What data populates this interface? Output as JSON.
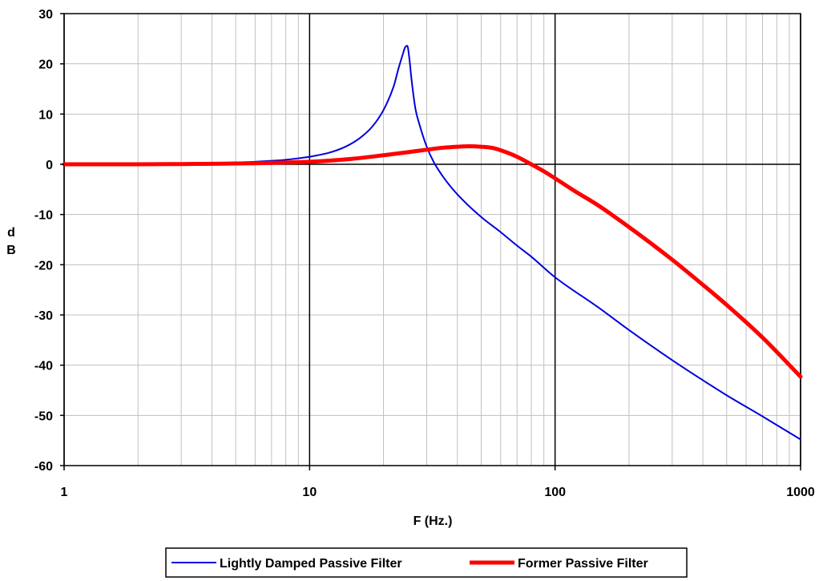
{
  "chart_data": {
    "type": "line",
    "title": "",
    "xlabel": "F  (Hz.)",
    "ylabel": "dB",
    "x_scale": "log",
    "xlim": [
      1,
      1000
    ],
    "ylim": [
      -60,
      30
    ],
    "x_ticks": [
      1,
      10,
      100,
      1000
    ],
    "x_tick_labels": [
      "1",
      "10",
      "100",
      "1000"
    ],
    "y_ticks": [
      30,
      20,
      10,
      0,
      -10,
      -20,
      -30,
      -40,
      -50,
      -60
    ],
    "y_tick_labels": [
      "30",
      "20",
      "10",
      "0",
      "-10",
      "-20",
      "-30",
      "-40",
      "-50",
      "-60"
    ],
    "grid": true,
    "legend_position": "bottom",
    "series": [
      {
        "name": "Lightly Damped Passive Filter",
        "color": "#0000dd",
        "x": [
          1,
          2,
          3,
          4,
          5,
          6,
          7,
          8,
          10,
          12,
          14,
          16,
          18,
          20,
          22,
          23,
          24,
          24.5,
          25,
          25.5,
          26,
          27,
          28,
          30,
          32,
          35,
          40,
          50,
          60,
          70,
          80,
          100,
          150,
          200,
          300,
          400,
          500,
          700,
          1000
        ],
        "y": [
          0,
          0.05,
          0.1,
          0.2,
          0.35,
          0.5,
          0.7,
          0.9,
          1.5,
          2.3,
          3.5,
          5.2,
          7.5,
          10.8,
          15.5,
          19,
          22,
          23.3,
          23.6,
          21,
          17,
          11,
          8,
          3.5,
          0.5,
          -2.5,
          -6,
          -10.5,
          -13.5,
          -16.2,
          -18.4,
          -22.5,
          -28.5,
          -33,
          -39,
          -43,
          -46,
          -50.2,
          -54.8
        ]
      },
      {
        "name": "Former Passive Filter",
        "color": "#ff0000",
        "x": [
          1,
          2,
          3,
          4,
          5,
          6,
          8,
          10,
          15,
          20,
          25,
          30,
          35,
          40,
          45,
          50,
          55,
          60,
          70,
          80,
          90,
          100,
          120,
          150,
          200,
          300,
          400,
          500,
          700,
          1000
        ],
        "y": [
          0,
          0,
          0.05,
          0.1,
          0.15,
          0.2,
          0.35,
          0.5,
          1.1,
          1.8,
          2.4,
          2.9,
          3.3,
          3.5,
          3.6,
          3.5,
          3.3,
          2.8,
          1.5,
          0,
          -1.4,
          -2.8,
          -5.3,
          -8.2,
          -12.5,
          -19,
          -24,
          -28,
          -34.5,
          -42.3
        ]
      }
    ]
  }
}
